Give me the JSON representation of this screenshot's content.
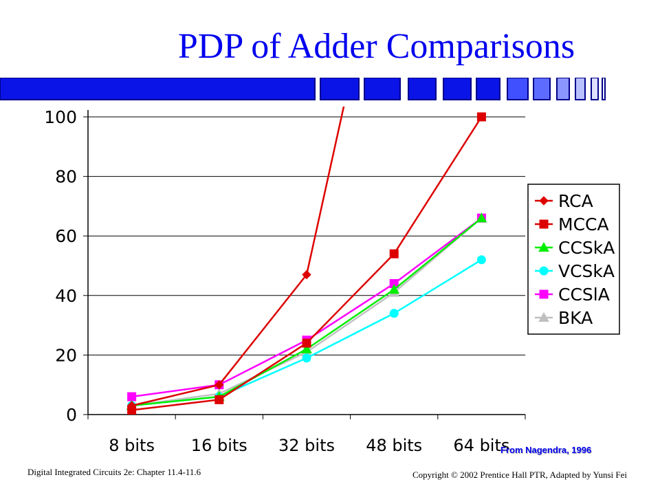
{
  "slide": {
    "title": "PDP of Adder Comparisons",
    "source_note": "From Nagendra, 1996",
    "footer_left": "Digital Integrated Circuits 2e: Chapter 11.4-11.6",
    "footer_right": "Copyright © 2002 Prentice Hall PTR, Adapted by Yunsi Fei"
  },
  "chart_data": {
    "type": "line",
    "title": "",
    "xlabel": "",
    "ylabel": "",
    "categories": [
      "8 bits",
      "16 bits",
      "32 bits",
      "48 bits",
      "64 bits"
    ],
    "ylim": [
      0,
      100
    ],
    "yticks": [
      0,
      20,
      40,
      60,
      80,
      100
    ],
    "grid": "horizontal",
    "legend_position": "right",
    "clipped_above_max": true,
    "series": [
      {
        "name": "RCA",
        "color": "#dd0000",
        "marker": "diamond",
        "values": [
          3,
          10,
          47,
          180,
          null
        ]
      },
      {
        "name": "MCCA",
        "color": "#dd0000",
        "marker": "square",
        "values": [
          1.5,
          5,
          24,
          54,
          100
        ]
      },
      {
        "name": "CCSkA",
        "color": "#00ee00",
        "marker": "triangle",
        "values": [
          3,
          6,
          22,
          42,
          66
        ]
      },
      {
        "name": "VCSkA",
        "color": "#00ffff",
        "marker": "circle",
        "values": [
          3,
          6,
          19,
          34,
          52
        ]
      },
      {
        "name": "CCSlA",
        "color": "#ff00ff",
        "marker": "square",
        "values": [
          6,
          10,
          25,
          44,
          66
        ]
      },
      {
        "name": "BKA",
        "color": "#c0c0c0",
        "marker": "triangle",
        "values": [
          3,
          7,
          21,
          41,
          66
        ]
      }
    ]
  }
}
